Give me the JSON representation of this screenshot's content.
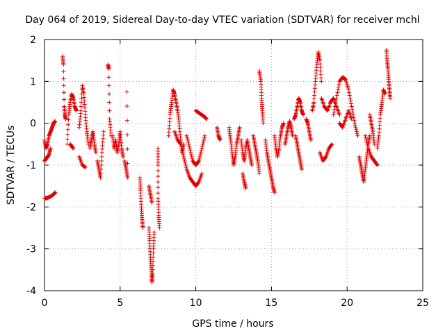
{
  "chart_data": {
    "type": "scatter",
    "title": "Day 064 of 2019, Sidereal Day-to-day VTEC variation (SDTVAR) for receiver mchl",
    "xlabel": "GPS time / hours",
    "ylabel": "SDTVAR / TECUs",
    "xlim": [
      0,
      25
    ],
    "ylim": [
      -4,
      2
    ],
    "x_ticks": [
      0,
      5,
      10,
      15,
      20,
      25
    ],
    "y_ticks": [
      -4,
      -3,
      -2,
      -1,
      0,
      1,
      2
    ],
    "grid": true,
    "marker": "+",
    "series": [
      {
        "name": "SDTVAR",
        "color": "#e00000",
        "segments": [
          [
            [
              0.0,
              -0.4
            ],
            [
              0.1,
              -0.6
            ],
            [
              0.2,
              -0.5
            ],
            [
              0.3,
              -0.3
            ],
            [
              0.4,
              -0.2
            ],
            [
              0.5,
              -0.1
            ],
            [
              0.6,
              0.0
            ],
            [
              0.7,
              0.05
            ]
          ],
          [
            [
              0.0,
              -0.9
            ],
            [
              0.1,
              -0.85
            ],
            [
              0.2,
              -0.8
            ],
            [
              0.3,
              -0.75
            ],
            [
              0.4,
              -0.6
            ]
          ],
          [
            [
              0.0,
              -1.8
            ],
            [
              0.2,
              -1.78
            ],
            [
              0.4,
              -1.75
            ],
            [
              0.6,
              -1.7
            ],
            [
              0.7,
              -1.65
            ]
          ],
          [
            [
              1.2,
              1.6
            ],
            [
              1.25,
              1.4
            ],
            [
              1.3,
              0.4
            ],
            [
              1.35,
              0.2
            ],
            [
              1.4,
              0.1
            ]
          ],
          [
            [
              1.5,
              -0.5
            ],
            [
              1.6,
              0.2
            ],
            [
              1.7,
              0.5
            ],
            [
              1.8,
              0.7
            ],
            [
              1.9,
              0.6
            ],
            [
              2.0,
              0.4
            ],
            [
              2.1,
              0.3
            ]
          ],
          [
            [
              1.7,
              -0.5
            ],
            [
              1.8,
              -0.55
            ],
            [
              1.9,
              -0.6
            ]
          ],
          [
            [
              2.3,
              -0.1
            ],
            [
              2.4,
              0.3
            ],
            [
              2.5,
              0.9
            ],
            [
              2.6,
              0.7
            ],
            [
              2.7,
              0.2
            ],
            [
              2.8,
              -0.2
            ],
            [
              2.9,
              -0.5
            ]
          ],
          [
            [
              2.3,
              -0.8
            ],
            [
              2.5,
              -1.0
            ],
            [
              2.7,
              -1.05
            ]
          ],
          [
            [
              3.0,
              -0.6
            ],
            [
              3.1,
              -0.4
            ],
            [
              3.2,
              -0.2
            ],
            [
              3.3,
              -0.5
            ],
            [
              3.4,
              -0.7
            ]
          ],
          [
            [
              3.5,
              -0.9
            ],
            [
              3.6,
              -1.1
            ],
            [
              3.7,
              -1.3
            ],
            [
              3.8,
              -0.7
            ],
            [
              3.9,
              -0.2
            ]
          ],
          [
            [
              4.2,
              1.4
            ],
            [
              4.25,
              1.3
            ],
            [
              4.3,
              0.1
            ],
            [
              4.4,
              -0.3
            ]
          ],
          [
            [
              4.5,
              -0.3
            ],
            [
              4.6,
              -0.6
            ],
            [
              4.7,
              -0.4
            ],
            [
              4.8,
              -0.7
            ],
            [
              4.9,
              -0.5
            ],
            [
              5.0,
              -0.2
            ],
            [
              5.1,
              -0.6
            ],
            [
              5.2,
              -0.8
            ]
          ],
          [
            [
              5.3,
              -0.9
            ],
            [
              5.4,
              -1.1
            ],
            [
              5.5,
              -1.3
            ],
            [
              5.45,
              0.75
            ]
          ],
          [
            [
              6.3,
              -1.3
            ],
            [
              6.35,
              -1.6
            ],
            [
              6.4,
              -2.0
            ],
            [
              6.45,
              -2.3
            ],
            [
              6.5,
              -2.5
            ]
          ],
          [
            [
              6.9,
              -2.5
            ],
            [
              6.95,
              -2.8
            ],
            [
              7.0,
              -3.2
            ],
            [
              7.05,
              -3.5
            ],
            [
              7.1,
              -3.8
            ],
            [
              7.15,
              -3.6
            ],
            [
              7.2,
              -3.0
            ],
            [
              7.25,
              -2.6
            ]
          ],
          [
            [
              6.9,
              -1.5
            ],
            [
              7.0,
              -1.7
            ],
            [
              7.1,
              -1.9
            ]
          ],
          [
            [
              7.5,
              -0.6
            ],
            [
              7.5,
              -1.0
            ],
            [
              7.5,
              -1.8
            ],
            [
              7.55,
              -2.2
            ],
            [
              7.6,
              -2.5
            ]
          ],
          [
            [
              8.2,
              -0.3
            ],
            [
              8.3,
              0.2
            ],
            [
              8.4,
              0.5
            ],
            [
              8.5,
              0.8
            ],
            [
              8.6,
              0.7
            ],
            [
              8.7,
              0.5
            ],
            [
              8.8,
              0.3
            ],
            [
              8.9,
              0.0
            ],
            [
              9.0,
              -0.4
            ],
            [
              9.1,
              -0.7
            ],
            [
              9.2,
              -0.5
            ]
          ],
          [
            [
              8.6,
              -0.2
            ],
            [
              8.8,
              -0.4
            ],
            [
              9.0,
              -0.5
            ],
            [
              9.2,
              -0.8
            ],
            [
              9.4,
              -1.1
            ],
            [
              9.6,
              -1.3
            ],
            [
              9.8,
              -1.4
            ],
            [
              10.0,
              -1.5
            ],
            [
              10.2,
              -1.4
            ],
            [
              10.4,
              -1.2
            ]
          ],
          [
            [
              9.4,
              -0.3
            ],
            [
              9.6,
              -0.6
            ],
            [
              9.8,
              -0.9
            ],
            [
              10.0,
              -1.0
            ],
            [
              10.2,
              -0.9
            ],
            [
              10.4,
              -0.6
            ],
            [
              10.6,
              -0.3
            ]
          ],
          [
            [
              10.0,
              0.3
            ],
            [
              10.2,
              0.25
            ],
            [
              10.4,
              0.2
            ],
            [
              10.6,
              0.15
            ],
            [
              10.7,
              0.1
            ]
          ],
          [
            [
              11.4,
              -0.1
            ],
            [
              11.5,
              -0.3
            ],
            [
              11.6,
              -0.4
            ]
          ],
          [
            [
              12.2,
              -0.1
            ],
            [
              12.3,
              -0.4
            ],
            [
              12.4,
              -0.7
            ],
            [
              12.5,
              -1.0
            ],
            [
              12.6,
              -0.8
            ],
            [
              12.7,
              -0.5
            ],
            [
              12.8,
              -0.3
            ],
            [
              12.9,
              -0.1
            ]
          ],
          [
            [
              13.0,
              -0.4
            ],
            [
              13.1,
              -0.7
            ],
            [
              13.2,
              -0.9
            ],
            [
              13.3,
              -0.6
            ],
            [
              13.4,
              -0.4
            ],
            [
              13.5,
              -0.6
            ],
            [
              13.6,
              -0.8
            ],
            [
              13.7,
              -1.0
            ]
          ],
          [
            [
              13.1,
              -1.2
            ],
            [
              13.2,
              -1.4
            ],
            [
              13.3,
              -1.55
            ]
          ],
          [
            [
              13.8,
              -0.3
            ],
            [
              13.9,
              -0.5
            ],
            [
              14.0,
              -0.7
            ],
            [
              14.1,
              -0.9
            ],
            [
              14.2,
              -1.2
            ]
          ],
          [
            [
              14.2,
              1.25
            ],
            [
              14.3,
              1.0
            ],
            [
              14.35,
              0.6
            ],
            [
              14.4,
              0.3
            ],
            [
              14.45,
              0.0
            ]
          ],
          [
            [
              14.6,
              -0.4
            ],
            [
              14.7,
              -0.7
            ],
            [
              14.8,
              -0.9
            ],
            [
              14.9,
              -1.1
            ],
            [
              15.0,
              -1.3
            ],
            [
              15.1,
              -1.5
            ],
            [
              15.2,
              -1.65
            ]
          ],
          [
            [
              15.2,
              -0.3
            ],
            [
              15.3,
              -0.6
            ],
            [
              15.4,
              -0.8
            ],
            [
              15.5,
              -0.6
            ],
            [
              15.6,
              -0.3
            ],
            [
              15.7,
              -0.1
            ],
            [
              15.8,
              0.0
            ]
          ],
          [
            [
              15.9,
              -0.5
            ],
            [
              16.0,
              -0.3
            ],
            [
              16.1,
              -0.1
            ],
            [
              16.2,
              0.05
            ],
            [
              16.3,
              -0.1
            ],
            [
              16.4,
              -0.3
            ]
          ],
          [
            [
              16.5,
              0.1
            ],
            [
              16.6,
              0.2
            ],
            [
              16.7,
              0.4
            ],
            [
              16.8,
              0.6
            ],
            [
              16.9,
              0.5
            ],
            [
              17.0,
              0.3
            ],
            [
              17.1,
              0.2
            ]
          ],
          [
            [
              16.6,
              -0.3
            ],
            [
              16.7,
              -0.5
            ],
            [
              16.8,
              -0.7
            ],
            [
              16.9,
              -0.9
            ],
            [
              17.0,
              -1.1
            ]
          ],
          [
            [
              17.3,
              0.1
            ],
            [
              17.4,
              0.0
            ],
            [
              17.5,
              -0.2
            ],
            [
              17.6,
              -0.4
            ]
          ],
          [
            [
              17.7,
              0.3
            ],
            [
              17.8,
              0.5
            ],
            [
              17.9,
              1.0
            ],
            [
              18.0,
              1.4
            ],
            [
              18.1,
              1.7
            ],
            [
              18.2,
              1.5
            ],
            [
              18.3,
              1.0
            ]
          ],
          [
            [
              18.2,
              -0.7
            ],
            [
              18.4,
              -0.9
            ],
            [
              18.6,
              -0.8
            ],
            [
              18.8,
              -0.6
            ],
            [
              19.0,
              -0.5
            ]
          ],
          [
            [
              18.3,
              0.6
            ],
            [
              18.5,
              0.4
            ],
            [
              18.7,
              0.3
            ],
            [
              18.9,
              0.5
            ],
            [
              19.1,
              0.6
            ],
            [
              19.3,
              0.4
            ],
            [
              19.5,
              0.2
            ]
          ],
          [
            [
              19.1,
              0.2
            ],
            [
              19.3,
              0.6
            ],
            [
              19.5,
              1.0
            ],
            [
              19.7,
              1.1
            ],
            [
              19.9,
              1.05
            ],
            [
              20.1,
              0.8
            ],
            [
              20.3,
              0.4
            ],
            [
              20.5,
              0.0
            ],
            [
              20.7,
              -0.3
            ]
          ],
          [
            [
              19.5,
              0.0
            ],
            [
              19.7,
              -0.1
            ],
            [
              19.9,
              0.1
            ],
            [
              20.1,
              0.3
            ],
            [
              20.3,
              0.1
            ]
          ],
          [
            [
              20.8,
              -0.8
            ],
            [
              20.9,
              -1.0
            ],
            [
              21.0,
              -1.2
            ],
            [
              21.1,
              -1.4
            ],
            [
              21.2,
              -1.1
            ],
            [
              21.3,
              -0.8
            ],
            [
              21.4,
              -0.5
            ],
            [
              21.5,
              -0.3
            ]
          ],
          [
            [
              21.2,
              -0.3
            ],
            [
              21.4,
              -0.6
            ],
            [
              21.6,
              -0.8
            ],
            [
              21.8,
              -0.9
            ],
            [
              22.0,
              -1.0
            ]
          ],
          [
            [
              21.5,
              0.2
            ],
            [
              21.6,
              0.0
            ],
            [
              21.7,
              -0.2
            ],
            [
              21.8,
              -0.5
            ]
          ],
          [
            [
              22.0,
              -0.6
            ],
            [
              22.1,
              -0.3
            ],
            [
              22.2,
              0.2
            ],
            [
              22.3,
              0.5
            ],
            [
              22.4,
              0.8
            ],
            [
              22.5,
              0.7
            ]
          ],
          [
            [
              22.6,
              1.75
            ],
            [
              22.65,
              1.5
            ],
            [
              22.7,
              1.3
            ],
            [
              22.75,
              1.0
            ],
            [
              22.8,
              0.8
            ],
            [
              22.85,
              0.6
            ]
          ]
        ]
      }
    ]
  }
}
